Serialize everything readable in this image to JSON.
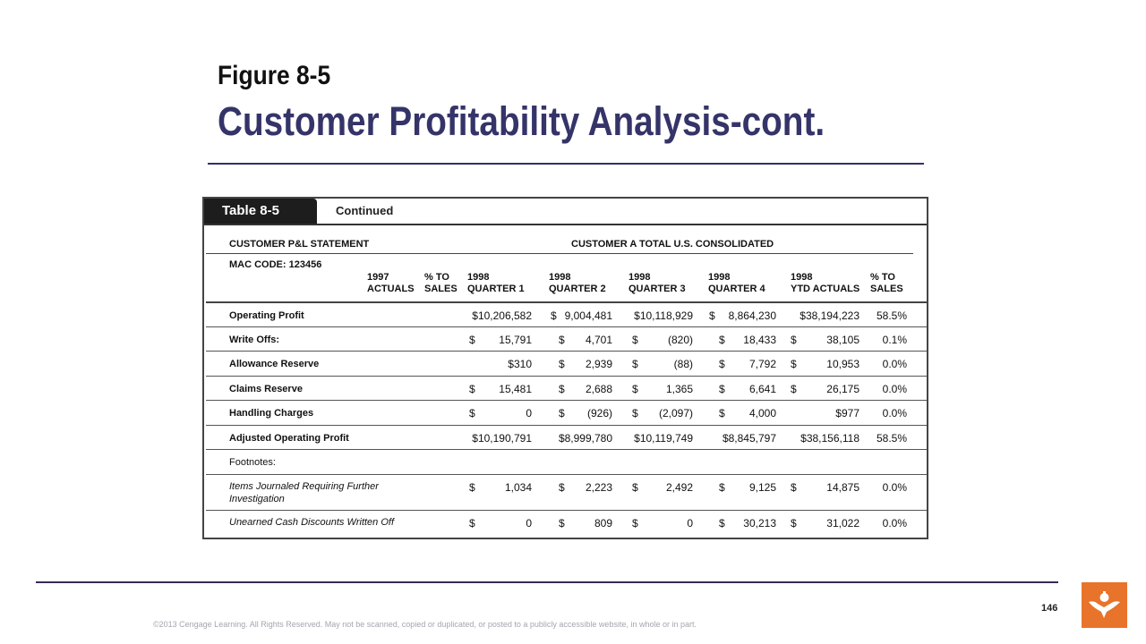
{
  "slide": {
    "figure_label": "Figure 8-5",
    "title": "Customer Profitability Analysis-cont.",
    "page_number": "146",
    "copyright": "©2013 Cengage Learning. All Rights Reserved. May not be scanned, copied or duplicated, or posted to a publicly accessible website, in whole or in part.",
    "accent_color": "#353469",
    "logo_color": "#e8732b"
  },
  "table": {
    "tab_label": "Table 8-5",
    "tab_subtitle": "Continued",
    "statement_label": "CUSTOMER P&L STATEMENT",
    "consolidated_label": "CUSTOMER A TOTAL U.S. CONSOLIDATED",
    "mac_code": "MAC CODE: 123456",
    "columns": [
      {
        "line1": "1997",
        "line2": "ACTUALS"
      },
      {
        "line1": "% TO",
        "line2": "SALES"
      },
      {
        "line1": "1998",
        "line2": "QUARTER 1"
      },
      {
        "line1": "1998",
        "line2": "QUARTER 2"
      },
      {
        "line1": "1998",
        "line2": "QUARTER 3"
      },
      {
        "line1": "1998",
        "line2": "QUARTER 4"
      },
      {
        "line1": "1998",
        "line2": "YTD ACTUALS"
      },
      {
        "line1": "% TO",
        "line2": "SALES"
      }
    ],
    "rows": [
      {
        "label": "Operating Profit",
        "q1": "$10,206,582",
        "q2": "9,004,481",
        "q3": "$10,118,929",
        "q4": "8,864,230",
        "ytd": "$38,194,223",
        "pct": "58.5%"
      },
      {
        "label": "Write Offs:",
        "q1": "15,791",
        "q2": "4,701",
        "q3": "(820)",
        "q4": "18,433",
        "ytd": "38,105",
        "pct": "0.1%"
      },
      {
        "label": "Allowance Reserve",
        "q1": "$310",
        "q2": "2,939",
        "q3": "(88)",
        "q4": "7,792",
        "ytd": "10,953",
        "pct": "0.0%"
      },
      {
        "label": "Claims Reserve",
        "q1": "15,481",
        "q2": "2,688",
        "q3": "1,365",
        "q4": "6,641",
        "ytd": "26,175",
        "pct": "0.0%"
      },
      {
        "label": "Handling Charges",
        "q1": "0",
        "q2": "(926)",
        "q3": "(2,097)",
        "q4": "4,000",
        "ytd": "$977",
        "pct": "0.0%"
      },
      {
        "label": "Adjusted Operating Profit",
        "q1": "$10,190,791",
        "q2": "$8,999,780",
        "q3": "$10,119,749",
        "q4": "$8,845,797",
        "ytd": "$38,156,118",
        "pct": "58.5%"
      }
    ],
    "footnotes_label": "Footnotes:",
    "footnote_rows": [
      {
        "label_line1": "Items Journaled Requiring Further",
        "label_line2": "Investigation",
        "q1": "1,034",
        "q2": "2,223",
        "q3": "2,492",
        "q4": "9,125",
        "ytd": "14,875",
        "pct": "0.0%"
      },
      {
        "label_line1": "Unearned Cash Discounts Written Off",
        "label_line2": "",
        "q1": "0",
        "q2": "809",
        "q3": "0",
        "q4": "30,213",
        "ytd": "31,022",
        "pct": "0.0%"
      }
    ],
    "dollar_sign": "$"
  }
}
